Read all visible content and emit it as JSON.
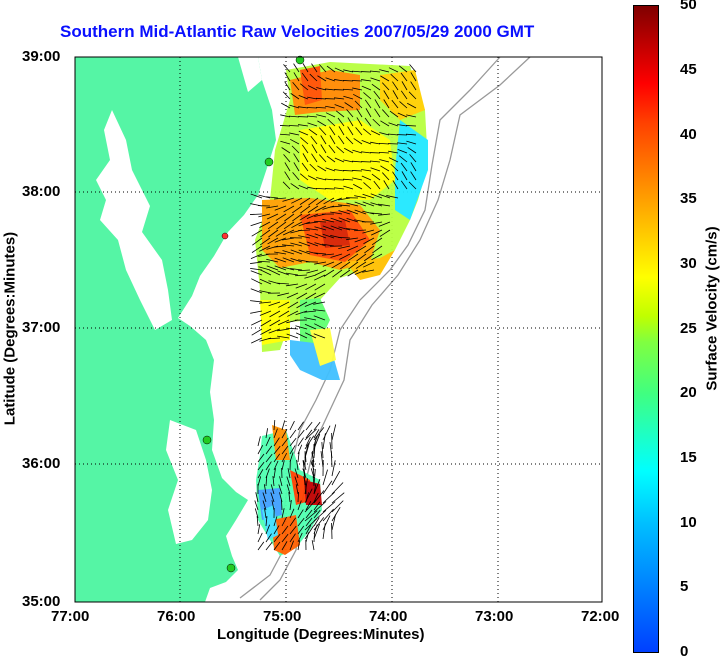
{
  "title": "Southern Mid-Atlantic Raw Velocities 2007/05/29 2000 GMT",
  "xlabel": "Longitude (Degrees:Minutes)",
  "ylabel": "Latitude (Degrees:Minutes)",
  "x_ticks": [
    "77:00",
    "76:00",
    "75:00",
    "74:00",
    "73:00",
    "72:00"
  ],
  "y_ticks": [
    "39:00",
    "38:00",
    "37:00",
    "36:00",
    "35:00"
  ],
  "colorbar": {
    "label": "Surface Velocity (cm/s)",
    "ticks": [
      "50",
      "45",
      "40",
      "35",
      "30",
      "25",
      "20",
      "15",
      "10",
      "5",
      "0"
    ],
    "range": [
      0,
      50
    ]
  },
  "colors": {
    "land": "#55f5a5",
    "title": "#0a10ff",
    "station": "#22cc22"
  }
}
